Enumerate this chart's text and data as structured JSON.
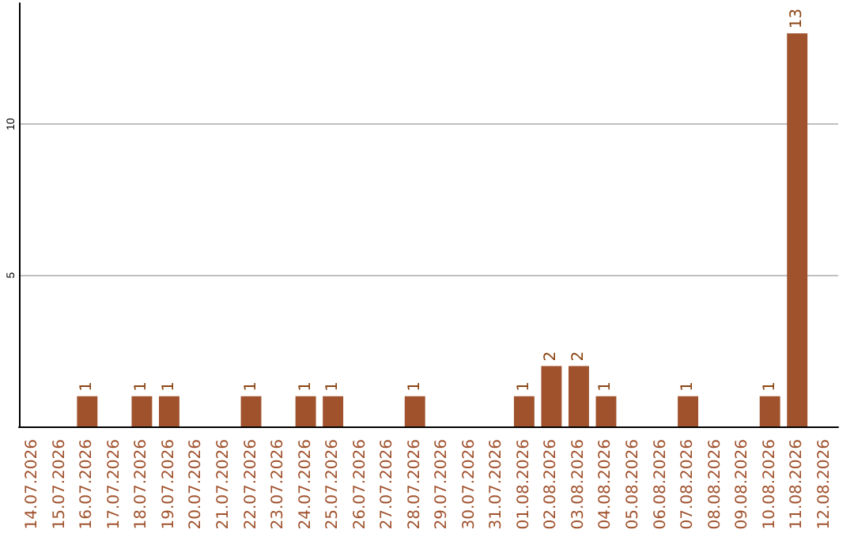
{
  "chart_data": {
    "type": "bar",
    "categories": [
      "14.07.2026",
      "15.07.2026",
      "16.07.2026",
      "17.07.2026",
      "18.07.2026",
      "19.07.2026",
      "20.07.2026",
      "21.07.2026",
      "22.07.2026",
      "23.07.2026",
      "24.07.2026",
      "25.07.2026",
      "26.07.2026",
      "27.07.2026",
      "28.07.2026",
      "29.07.2026",
      "30.07.2026",
      "31.07.2026",
      "01.08.2026",
      "02.08.2026",
      "03.08.2026",
      "04.08.2026",
      "05.08.2026",
      "06.08.2026",
      "07.08.2026",
      "08.08.2026",
      "09.08.2026",
      "10.08.2026",
      "11.08.2026",
      "12.08.2026"
    ],
    "values": [
      0,
      0,
      1,
      0,
      1,
      1,
      0,
      0,
      1,
      0,
      1,
      1,
      0,
      0,
      1,
      0,
      0,
      0,
      1,
      2,
      2,
      1,
      0,
      0,
      1,
      0,
      0,
      1,
      13,
      0
    ],
    "value_labels": [
      null,
      null,
      "1",
      null,
      "1",
      "1",
      null,
      null,
      "1",
      null,
      "1",
      "1",
      null,
      null,
      "1",
      null,
      null,
      null,
      "1",
      "2",
      "2",
      "1",
      null,
      null,
      "1",
      null,
      null,
      "1",
      "13",
      null
    ],
    "color": "#a0522d",
    "ylim": [
      0,
      14
    ],
    "yticks": [
      5,
      10
    ],
    "grid": "y"
  }
}
